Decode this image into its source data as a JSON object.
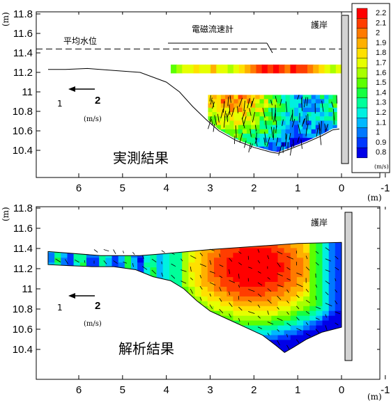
{
  "chart_data": [
    {
      "type": "contour",
      "panel": "measured",
      "panel_label": "実測結果",
      "x_unit_label": "(m)",
      "y_unit_label": "(m)",
      "x_ticks": [
        "6",
        "5",
        "4",
        "3",
        "2",
        "1",
        "0",
        "-1"
      ],
      "y_ticks": [
        "11.8",
        "11.6",
        "11.4",
        "11.2",
        "11",
        "10.8",
        "10.6",
        "10.4"
      ],
      "xlim": [
        6.7,
        -1.0
      ],
      "ylim": [
        10.3,
        11.8
      ],
      "mean_water_level_label": "平均水位",
      "mean_water_level": 11.44,
      "instrument_label": "電磁流速計",
      "revetment_label": "護岸",
      "reference_arrow_value": "2",
      "reference_arrow_unit": "(m/s)",
      "side_mark": "1",
      "bed_profile": [
        [
          6.7,
          11.23
        ],
        [
          6.3,
          11.23
        ],
        [
          5.8,
          11.24
        ],
        [
          5.2,
          11.22
        ],
        [
          4.6,
          11.2
        ],
        [
          4.0,
          11.1
        ],
        [
          3.7,
          11.0
        ],
        [
          3.4,
          10.85
        ],
        [
          3.1,
          10.72
        ],
        [
          2.8,
          10.6
        ],
        [
          2.4,
          10.5
        ],
        [
          2.0,
          10.43
        ],
        [
          1.6,
          10.38
        ],
        [
          1.45,
          10.37
        ],
        [
          1.2,
          10.41
        ],
        [
          0.8,
          10.48
        ],
        [
          0.45,
          10.55
        ],
        [
          0.2,
          10.61
        ],
        [
          0.05,
          10.62
        ]
      ],
      "instrument_row": {
        "x_from": 3.9,
        "x_to": 0.0,
        "y_top": 11.28,
        "y_bottom": 11.19,
        "values": [
          1.55,
          1.6,
          1.7,
          1.75,
          1.8,
          1.7,
          1.75,
          1.9,
          1.75,
          1.7,
          1.65,
          1.7,
          1.8,
          1.95,
          2.05,
          2.15,
          2.2,
          2.15,
          2.2,
          2.1,
          2.05,
          2.2,
          2.15,
          2.1,
          2.05,
          1.9,
          1.8,
          1.7,
          1.65,
          1.75
        ]
      },
      "velocity_zone": {
        "x_from": 3.05,
        "x_to": 0.1,
        "y_top": 10.97
      },
      "vector_glyph_count": 100
    },
    {
      "type": "contour",
      "panel": "computed",
      "panel_label": "解析結果",
      "x_unit_label": "(m)",
      "y_unit_label": "(m)",
      "x_ticks": [
        "6",
        "5",
        "4",
        "3",
        "2",
        "1",
        "0",
        "-1"
      ],
      "y_ticks": [
        "11.8",
        "11.6",
        "11.4",
        "11.2",
        "11",
        "10.8",
        "10.6",
        "10.4"
      ],
      "xlim": [
        6.7,
        -1.0
      ],
      "ylim": [
        10.3,
        11.8
      ],
      "revetment_label": "護岸",
      "reference_arrow_value": "2",
      "reference_arrow_unit": "(m/s)",
      "side_mark": "1",
      "surface": [
        [
          6.7,
          11.37
        ],
        [
          5.5,
          11.33
        ],
        [
          4.6,
          11.33
        ],
        [
          4.0,
          11.35
        ],
        [
          3.0,
          11.39
        ],
        [
          2.0,
          11.42
        ],
        [
          1.0,
          11.45
        ],
        [
          0.0,
          11.46
        ]
      ],
      "bed_profile": [
        [
          6.7,
          11.24
        ],
        [
          6.2,
          11.23
        ],
        [
          5.7,
          11.22
        ],
        [
          5.2,
          11.22
        ],
        [
          4.7,
          11.19
        ],
        [
          4.3,
          11.12
        ],
        [
          3.9,
          11.08
        ],
        [
          3.6,
          11.0
        ],
        [
          3.3,
          10.88
        ],
        [
          3.0,
          10.78
        ],
        [
          2.6,
          10.7
        ],
        [
          2.2,
          10.62
        ],
        [
          1.8,
          10.54
        ],
        [
          1.5,
          10.44
        ],
        [
          1.3,
          10.37
        ],
        [
          1.1,
          10.42
        ],
        [
          0.8,
          10.5
        ],
        [
          0.45,
          10.57
        ],
        [
          0.0,
          10.62
        ]
      ],
      "velocity_core": {
        "x": 2.0,
        "y": 11.22,
        "value": 2.2
      },
      "vector_glyph_count": 160
    }
  ],
  "colorbar": {
    "levels": [
      "2.2",
      "2.1",
      "2",
      "1.9",
      "1.8",
      "1.7",
      "1.6",
      "1.5",
      "1.4",
      "1.3",
      "1.2",
      "1.1",
      "1",
      "0.9",
      "0.8"
    ],
    "unit": "(m/s)",
    "colors": [
      "#ff0000",
      "#ff3d00",
      "#ff7a00",
      "#ffb000",
      "#ffe000",
      "#e6ff00",
      "#a8ff00",
      "#5cff00",
      "#16ff40",
      "#00ff9a",
      "#00f0e0",
      "#00b8ff",
      "#0078ff",
      "#0038ff",
      "#0000e8"
    ],
    "min": 0.8,
    "max": 2.2
  }
}
